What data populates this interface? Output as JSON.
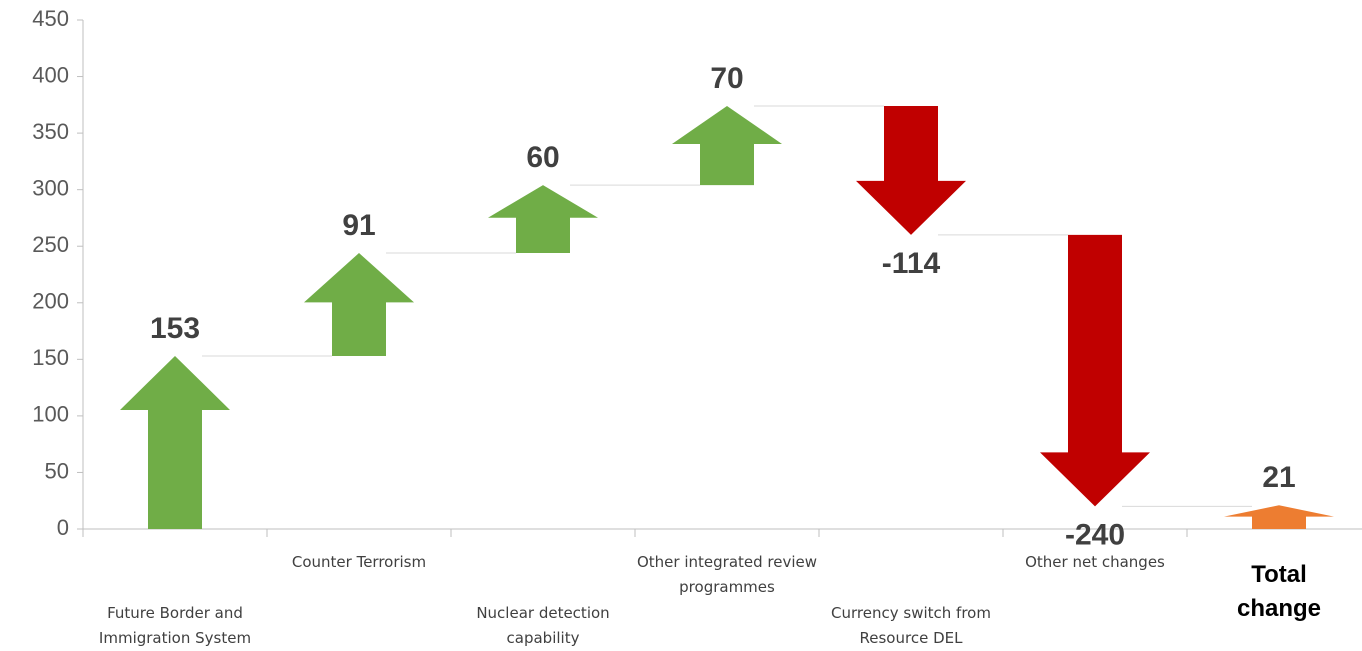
{
  "chart_data": {
    "type": "waterfall",
    "categories": [
      "Future Border and Immigration System",
      "Counter Terrorism",
      "Nuclear detection capability",
      "Other integrated review programmes",
      "Currency switch from Resource DEL",
      "Other net changes",
      "Total change"
    ],
    "values": [
      153,
      91,
      60,
      70,
      -114,
      -240,
      21
    ],
    "colors": [
      "#70ad47",
      "#70ad47",
      "#70ad47",
      "#70ad47",
      "#c00000",
      "#c00000",
      "#ed7d31"
    ],
    "ylim": [
      0,
      450
    ],
    "yticks": [
      0,
      50,
      100,
      150,
      200,
      250,
      300,
      350,
      400,
      450
    ]
  }
}
